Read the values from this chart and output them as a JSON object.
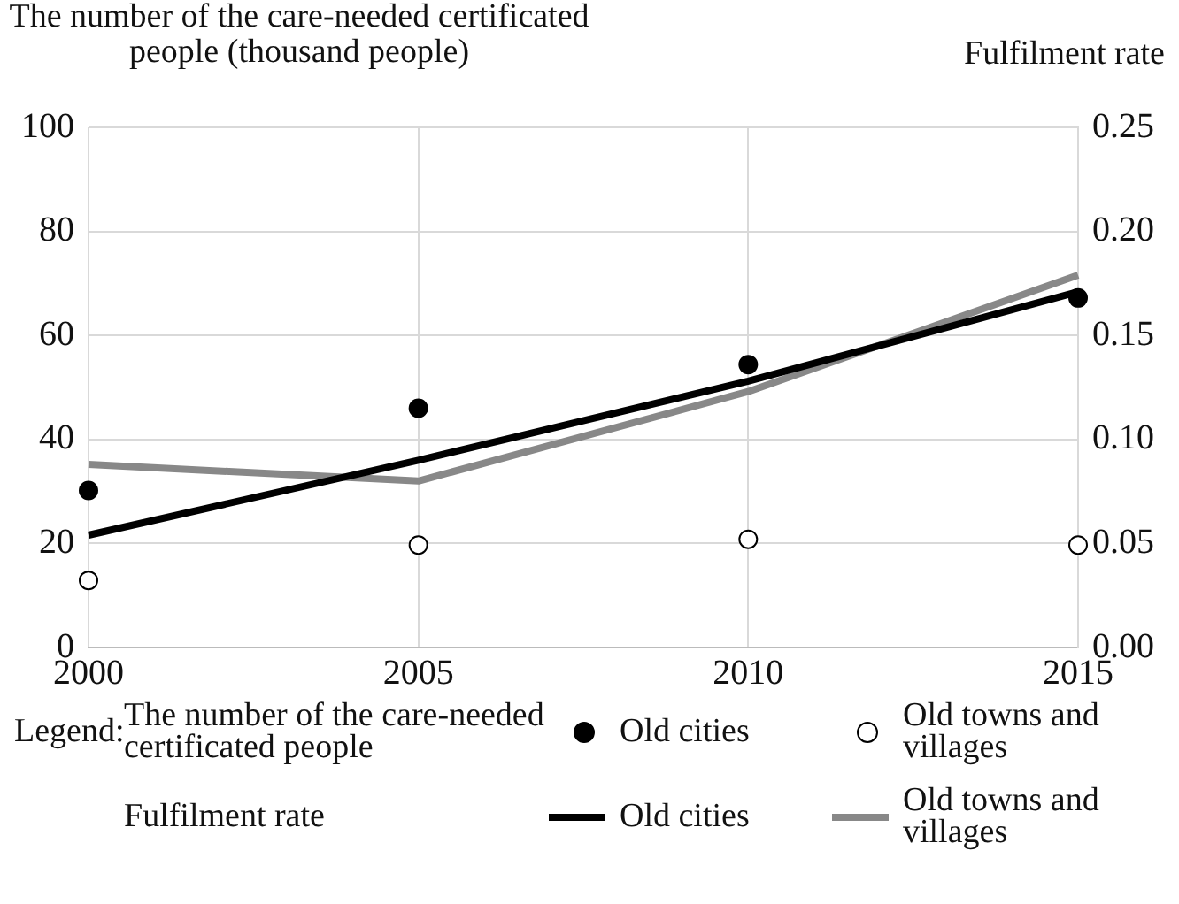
{
  "chart_data": {
    "type": "line",
    "ylabel": "The number of the care-needed certificated people (thousand people)",
    "y2label": "Fulfilment rate",
    "legend_title": "Legend:",
    "annotations": [
      "The number of the care-needed certificated people",
      "Fulfilment rate"
    ],
    "x": [
      2000,
      2005,
      2010,
      2015
    ],
    "xlim": [
      2000,
      2015
    ],
    "xticks": [
      2000,
      2005,
      2010,
      2015
    ],
    "ylim": [
      0,
      100
    ],
    "yticks": [
      0,
      20,
      40,
      60,
      80,
      100
    ],
    "y2lim": [
      0,
      0.25
    ],
    "y2ticks": [
      {
        "value": 0,
        "label": "0.00"
      },
      {
        "value": 0.05,
        "label": "0.05"
      },
      {
        "value": 0.1,
        "label": "0.10"
      },
      {
        "value": 0.15,
        "label": "0.15"
      },
      {
        "value": 0.2,
        "label": "0.20"
      },
      {
        "value": 0.25,
        "label": "0.25"
      }
    ],
    "grid": true,
    "legend": "bottom",
    "series": [
      {
        "name": "Old cities",
        "type": "scatter",
        "marker": "circle",
        "color": "#000000",
        "values": [
          30.2,
          46,
          54.4,
          67.2
        ]
      },
      {
        "name": "Old towns and villages",
        "type": "scatter",
        "marker": "circle",
        "color": "#ffffff",
        "values": [
          12.9,
          19.7,
          20.8,
          19.7
        ]
      },
      {
        "name": "Old cities",
        "type": "line",
        "axis": "y2",
        "marker": "none",
        "line_style": "solid",
        "color": "#000000",
        "values": [
          0.054,
          0.09,
          0.128,
          0.171
        ]
      },
      {
        "name": "Old towns and villages",
        "type": "line",
        "axis": "y2",
        "marker": "none",
        "line_style": "solid",
        "color": "#888888",
        "values": [
          0.088,
          0.08,
          0.123,
          0.179
        ]
      }
    ]
  }
}
